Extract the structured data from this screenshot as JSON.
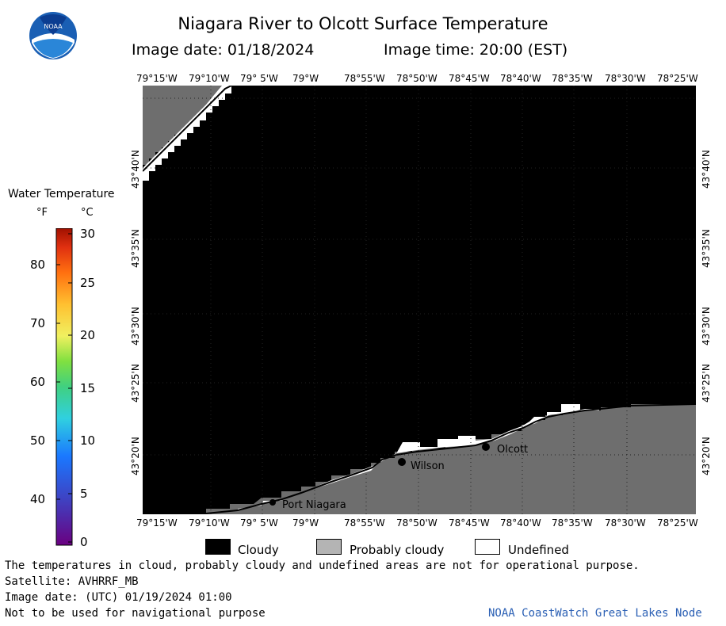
{
  "header": {
    "title": "Niagara River to Olcott Surface Temperature",
    "image_date": "Image date: 01/18/2024",
    "image_time": "Image time: 20:00 (EST)"
  },
  "logo": {
    "text": "NOAA"
  },
  "map": {
    "lon_labels": [
      "79°15'W",
      "79°10'W",
      "79° 5'W",
      "79°W",
      "78°55'W",
      "78°50'W",
      "78°45'W",
      "78°40'W",
      "78°35'W",
      "78°30'W",
      "78°25'W"
    ],
    "lat_labels": [
      "43°40'N",
      "43°35'N",
      "43°30'N",
      "43°25'N",
      "43°20'N"
    ],
    "places": [
      {
        "name": "Port Niagara"
      },
      {
        "name": "Wilson"
      },
      {
        "name": "Olcott"
      }
    ],
    "colors": {
      "cloudy": "#000000",
      "probably_cloudy": "#6e6e6e",
      "undefined": "#ffffff"
    }
  },
  "colorbar": {
    "title": "Water Temperature",
    "unit_f": "°F",
    "unit_c": "°C",
    "f_ticks": [
      "80",
      "70",
      "60",
      "50",
      "40"
    ],
    "c_ticks": [
      "30",
      "25",
      "20",
      "15",
      "10",
      "5",
      "0"
    ]
  },
  "legend": {
    "cloudy": "Cloudy",
    "probably_cloudy": "Probably cloudy",
    "undefined": "Undefined"
  },
  "footer": {
    "note": "The temperatures in cloud, probably cloudy and undefined areas are not for operational purpose.",
    "satellite": "Satellite: AVHRRF_MB",
    "utc_date": "Image date: (UTC) 01/19/2024  01:00",
    "nav_warning": "Not to be used for navigational purpose",
    "credit": "NOAA CoastWatch Great Lakes Node"
  }
}
